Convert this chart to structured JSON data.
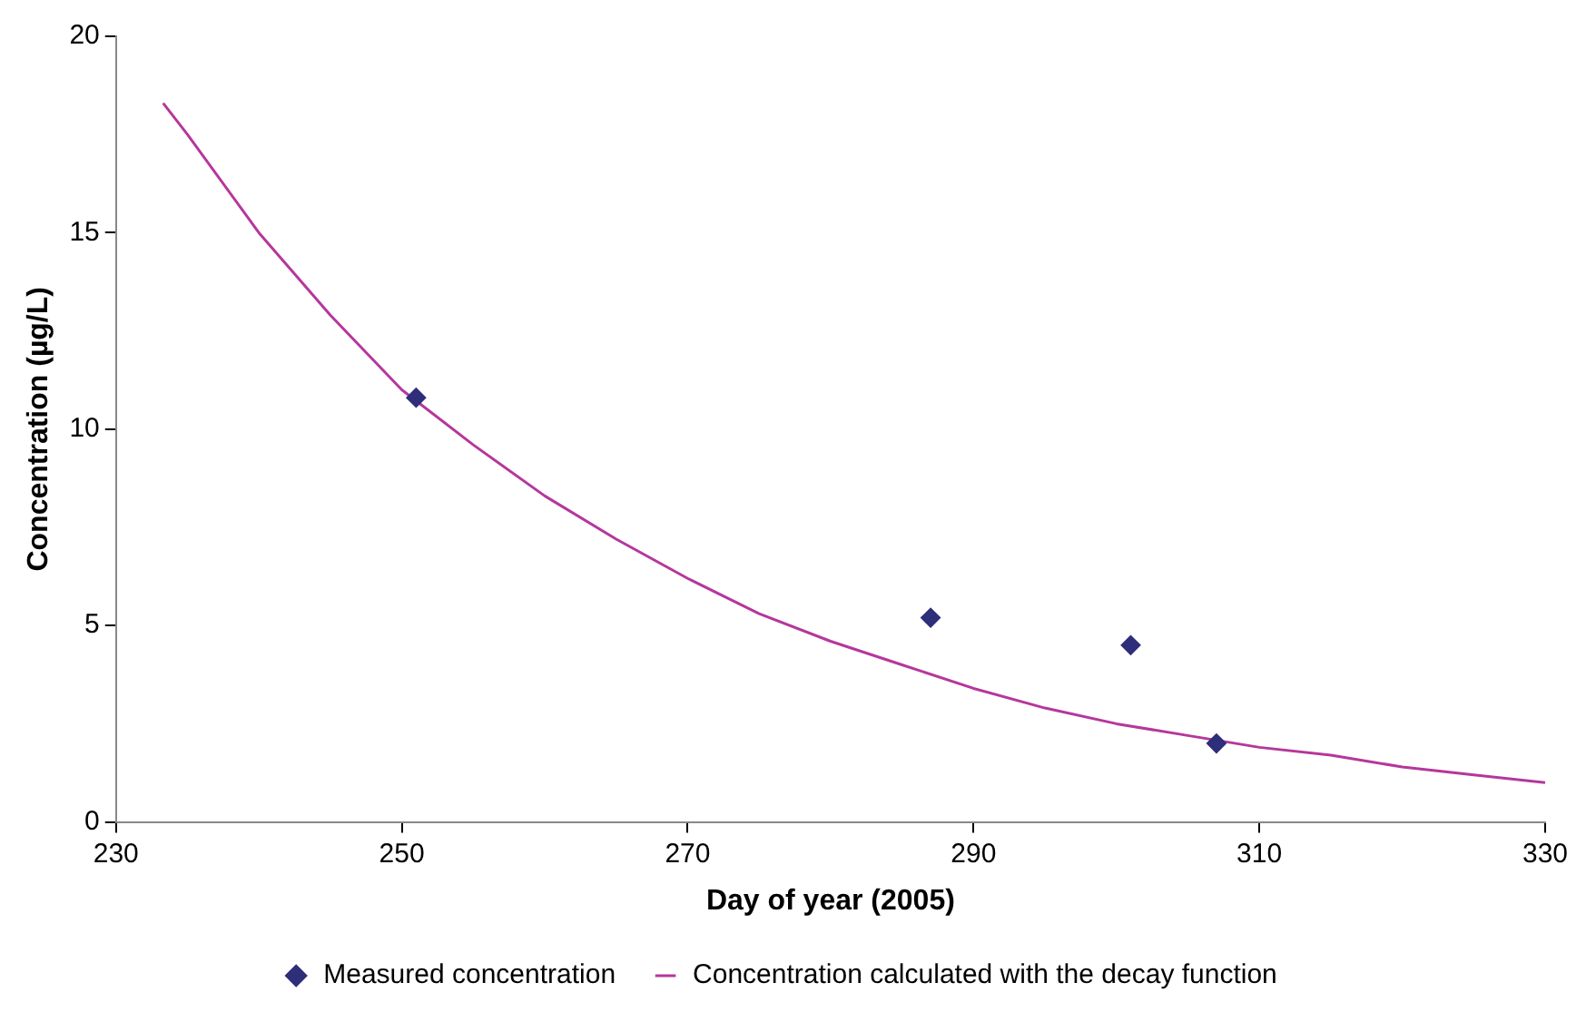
{
  "chart_data": {
    "type": "scatter",
    "xlabel": "Day of year (2005)",
    "ylabel": "Concentration (µg/L)",
    "xlim": [
      230,
      330
    ],
    "xticks": [
      230,
      250,
      270,
      290,
      310,
      330
    ],
    "ylim": [
      0,
      20
    ],
    "yticks": [
      0,
      5,
      10,
      15,
      20
    ],
    "grid": false,
    "legend": "bottom",
    "series": [
      {
        "name": "Measured concentration",
        "type": "scatter",
        "marker": "diamond",
        "color": "#2e2e7a",
        "x": [
          251,
          287,
          301,
          307
        ],
        "values": [
          10.8,
          5.2,
          4.5,
          2.0
        ]
      },
      {
        "name": "Concentration calculated with the decay function",
        "type": "line",
        "marker": "none",
        "color": "#b5379c",
        "x": [
          233.3,
          235,
          240,
          245,
          250,
          255,
          260,
          265,
          270,
          275,
          280,
          285,
          290,
          295,
          300,
          305,
          310,
          315,
          320,
          325,
          330
        ],
        "values": [
          18.3,
          17.5,
          15.0,
          12.9,
          11.0,
          9.6,
          8.3,
          7.2,
          6.2,
          5.3,
          4.6,
          4.0,
          3.4,
          2.9,
          2.5,
          2.2,
          1.9,
          1.7,
          1.4,
          1.2,
          1.0
        ]
      }
    ]
  }
}
